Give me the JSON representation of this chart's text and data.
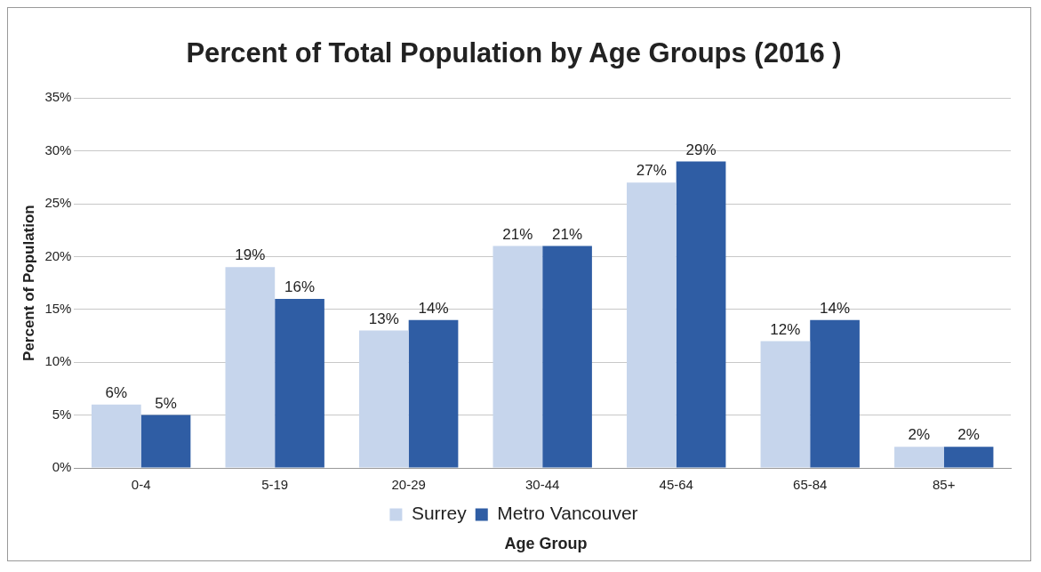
{
  "chart_data": {
    "type": "bar",
    "title": "Percent of Total Population by Age Groups (2016 )",
    "xlabel": "Age Group",
    "ylabel": "Percent of Population",
    "categories": [
      "0-4",
      "5-19",
      "20-29",
      "30-44",
      "45-64",
      "65-84",
      "85+"
    ],
    "series": [
      {
        "name": "Surrey",
        "color": "#c6d5ec",
        "values": [
          6,
          19,
          13,
          21,
          27,
          12,
          2
        ],
        "value_labels": [
          "6%",
          "19%",
          "13%",
          "21%",
          "27%",
          "12%",
          "2%"
        ]
      },
      {
        "name": "Metro Vancouver",
        "color": "#2f5da4",
        "values": [
          5,
          16,
          14,
          21,
          29,
          14,
          2
        ],
        "value_labels": [
          "5%",
          "16%",
          "14%",
          "21%",
          "29%",
          "14%",
          "2%"
        ]
      }
    ],
    "ylim": [
      0,
      35
    ],
    "yticks": [
      {
        "value": 0,
        "label": "0%"
      },
      {
        "value": 5,
        "label": "5%"
      },
      {
        "value": 10,
        "label": "10%"
      },
      {
        "value": 15,
        "label": "15%"
      },
      {
        "value": 20,
        "label": "20%"
      },
      {
        "value": 25,
        "label": "25%"
      },
      {
        "value": 30,
        "label": "30%"
      },
      {
        "value": 35,
        "label": "35%"
      }
    ],
    "grid": "y",
    "legend": "bottom"
  }
}
